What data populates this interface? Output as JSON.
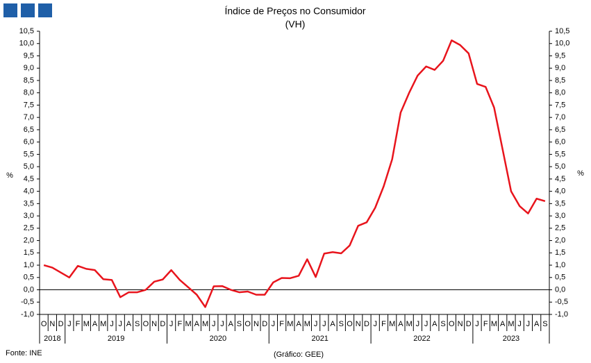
{
  "chart_data": {
    "type": "line",
    "title": "Índice de Preços no Consumidor",
    "subtitle": "(VH)",
    "y_label": "%",
    "y2_label": "%",
    "source": "Fonte: INE",
    "credit": "(Gráfico: GEE)",
    "color": "#e8141c",
    "categories": [
      "O",
      "N",
      "D",
      "J",
      "F",
      "M",
      "A",
      "M",
      "J",
      "J",
      "A",
      "S",
      "O",
      "N",
      "D",
      "J",
      "F",
      "M",
      "A",
      "M",
      "J",
      "J",
      "A",
      "S",
      "O",
      "N",
      "D",
      "J",
      "F",
      "M",
      "A",
      "M",
      "J",
      "J",
      "A",
      "S",
      "O",
      "N",
      "D",
      "J",
      "F",
      "M",
      "A",
      "M",
      "J",
      "J",
      "A",
      "S",
      "O",
      "N",
      "D",
      "J",
      "F",
      "M",
      "A",
      "M",
      "J",
      "J",
      "A",
      "S"
    ],
    "years": [
      "2018",
      "2019",
      "2020",
      "2021",
      "2022",
      "2023"
    ],
    "values": [
      1.0,
      0.9,
      0.7,
      0.5,
      0.97,
      0.85,
      0.8,
      0.43,
      0.4,
      -0.3,
      -0.1,
      -0.1,
      0.0,
      0.33,
      0.42,
      0.8,
      0.4,
      0.1,
      -0.2,
      -0.7,
      0.14,
      0.15,
      0.0,
      -0.1,
      -0.07,
      -0.2,
      -0.2,
      0.3,
      0.48,
      0.47,
      0.57,
      1.24,
      0.52,
      1.47,
      1.53,
      1.48,
      1.8,
      2.6,
      2.74,
      3.33,
      4.2,
      5.3,
      7.2,
      8.0,
      8.7,
      9.07,
      8.93,
      9.3,
      10.13,
      9.94,
      9.6,
      8.36,
      8.24,
      7.4,
      5.7,
      4.0,
      3.4,
      3.1,
      3.7,
      3.6
    ],
    "ylim": [
      -1.0,
      10.5
    ],
    "yticks": [
      {
        "value": -1.0,
        "label": "-1,0"
      },
      {
        "value": -0.5,
        "label": "-0,5"
      },
      {
        "value": 0.0,
        "label": "0,0"
      },
      {
        "value": 0.5,
        "label": "0,5"
      },
      {
        "value": 1.0,
        "label": "1,0"
      },
      {
        "value": 1.5,
        "label": "1,5"
      },
      {
        "value": 2.0,
        "label": "2,0"
      },
      {
        "value": 2.5,
        "label": "2,5"
      },
      {
        "value": 3.0,
        "label": "3,0"
      },
      {
        "value": 3.5,
        "label": "3,5"
      },
      {
        "value": 4.0,
        "label": "4,0"
      },
      {
        "value": 4.5,
        "label": "4,5"
      },
      {
        "value": 5.0,
        "label": "5,0"
      },
      {
        "value": 5.5,
        "label": "5,5"
      },
      {
        "value": 6.0,
        "label": "6,0"
      },
      {
        "value": 6.5,
        "label": "6,5"
      },
      {
        "value": 7.0,
        "label": "7,0"
      },
      {
        "value": 7.5,
        "label": "7,5"
      },
      {
        "value": 8.0,
        "label": "8,0"
      },
      {
        "value": 8.5,
        "label": "8,5"
      },
      {
        "value": 9.0,
        "label": "9,0"
      },
      {
        "value": 9.5,
        "label": "9,5"
      },
      {
        "value": 10.0,
        "label": "10,0"
      },
      {
        "value": 10.5,
        "label": "10,5"
      }
    ],
    "y2lim": [
      -1.0,
      10.5
    ],
    "y2ticks": [
      {
        "value": -1.0,
        "label": "-1,0"
      },
      {
        "value": -0.5,
        "label": "-0,5"
      },
      {
        "value": 0.0,
        "label": "0,0"
      },
      {
        "value": 0.5,
        "label": "0,5"
      },
      {
        "value": 1.0,
        "label": "1,0"
      },
      {
        "value": 1.5,
        "label": "1,5"
      },
      {
        "value": 2.0,
        "label": "2,0"
      },
      {
        "value": 2.5,
        "label": "2,5"
      },
      {
        "value": 3.0,
        "label": "3,0"
      },
      {
        "value": 3.5,
        "label": "3,5"
      },
      {
        "value": 4.0,
        "label": "4,0"
      },
      {
        "value": 4.5,
        "label": "4,5"
      },
      {
        "value": 5.0,
        "label": "5,0"
      },
      {
        "value": 5.5,
        "label": "5,5"
      },
      {
        "value": 6.0,
        "label": "6,0"
      },
      {
        "value": 6.5,
        "label": "6,5"
      },
      {
        "value": 7.0,
        "label": "7,0"
      },
      {
        "value": 7.5,
        "label": "7,5"
      },
      {
        "value": 8.0,
        "label": "8,0"
      },
      {
        "value": 8.5,
        "label": "8,5"
      },
      {
        "value": 9.0,
        "label": "9,0"
      },
      {
        "value": 9.5,
        "label": "9,5"
      },
      {
        "value": 10.0,
        "label": "10,0"
      },
      {
        "value": 10.5,
        "label": "10,5"
      }
    ],
    "grid": false
  }
}
